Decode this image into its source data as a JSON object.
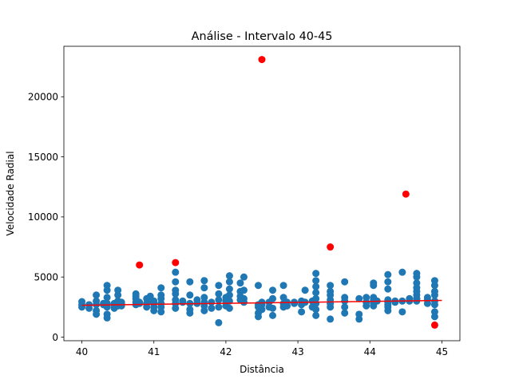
{
  "chart_data": {
    "type": "scatter",
    "title": "Análise - Intervalo 40-45",
    "xlabel": "Distância",
    "ylabel": "Velocidade Radial",
    "xlim": [
      39.75,
      45.25
    ],
    "ylim": [
      -300,
      24200
    ],
    "xticks": [
      40,
      41,
      42,
      43,
      44,
      45
    ],
    "yticks": [
      0,
      5000,
      10000,
      15000,
      20000
    ],
    "ytick_labels": [
      "0",
      "5000",
      "10000",
      "15000",
      "20000"
    ],
    "grid": false,
    "colors": {
      "points": "#1f77b4",
      "outliers": "#ff0000",
      "trend": "#ff0000"
    },
    "series": [
      {
        "role": "points",
        "x": [
          40.0,
          40.0,
          40.0,
          40.1,
          40.1,
          40.2,
          40.2,
          40.2,
          40.2,
          40.2,
          40.3,
          40.3,
          40.35,
          40.35,
          40.35,
          40.35,
          40.35,
          40.35,
          40.35,
          40.45,
          40.45,
          40.45,
          40.5,
          40.5,
          40.5,
          40.5,
          40.55,
          40.55,
          40.55,
          40.55,
          40.75,
          40.75,
          40.75,
          40.75,
          40.75,
          40.8,
          40.8,
          40.9,
          40.9,
          40.9,
          40.95,
          40.95,
          41.0,
          41.0,
          41.0,
          41.0,
          41.0,
          41.1,
          41.1,
          41.1,
          41.1,
          41.1,
          41.1,
          41.3,
          41.3,
          41.3,
          41.3,
          41.3,
          41.3,
          41.3,
          41.4,
          41.4,
          41.5,
          41.5,
          41.5,
          41.5,
          41.5,
          41.6,
          41.6,
          41.7,
          41.7,
          41.7,
          41.7,
          41.7,
          41.7,
          41.8,
          41.8,
          41.9,
          41.9,
          41.9,
          41.9,
          41.9,
          42.0,
          42.0,
          42.0,
          42.0,
          42.05,
          42.05,
          42.05,
          42.05,
          42.05,
          42.05,
          42.2,
          42.2,
          42.2,
          42.2,
          42.25,
          42.25,
          42.25,
          42.25,
          42.45,
          42.45,
          42.45,
          42.45,
          42.45,
          42.5,
          42.5,
          42.5,
          42.6,
          42.6,
          42.65,
          42.65,
          42.65,
          42.65,
          42.8,
          42.8,
          42.8,
          42.8,
          42.85,
          42.85,
          42.95,
          42.95,
          43.05,
          43.05,
          43.05,
          43.1,
          43.1,
          43.2,
          43.2,
          43.25,
          43.25,
          43.25,
          43.25,
          43.25,
          43.25,
          43.25,
          43.25,
          43.45,
          43.45,
          43.45,
          43.45,
          43.45,
          43.45,
          43.45,
          43.65,
          43.65,
          43.65,
          43.65,
          43.65,
          43.85,
          43.85,
          43.85,
          43.95,
          43.95,
          43.95,
          44.05,
          44.05,
          44.05,
          44.05,
          44.05,
          44.05,
          44.05,
          44.1,
          44.25,
          44.25,
          44.25,
          44.25,
          44.25,
          44.25,
          44.25,
          44.25,
          44.35,
          44.35,
          44.45,
          44.45,
          44.45,
          44.55,
          44.55,
          44.65,
          44.65,
          44.65,
          44.65,
          44.65,
          44.65,
          44.65,
          44.65,
          44.65,
          44.8,
          44.8,
          44.8,
          44.9,
          44.9,
          44.9,
          44.9,
          44.9,
          44.9,
          44.9,
          44.9
        ],
        "y": [
          2500,
          2700,
          2950,
          2400,
          2700,
          1900,
          2200,
          2700,
          3000,
          3500,
          2700,
          2800,
          1600,
          1900,
          2500,
          2800,
          3300,
          3900,
          4300,
          2400,
          2600,
          2800,
          2600,
          3000,
          3500,
          3900,
          2600,
          2800,
          2900,
          2700,
          2700,
          2900,
          3200,
          3400,
          3600,
          2800,
          2900,
          2500,
          2800,
          3200,
          3100,
          3400,
          2200,
          2500,
          2800,
          2900,
          3000,
          2100,
          2500,
          2800,
          3200,
          3500,
          4100,
          2400,
          2800,
          3100,
          3600,
          3900,
          4600,
          5400,
          3000,
          2900,
          2000,
          2300,
          2800,
          3500,
          4600,
          2800,
          3100,
          2200,
          2600,
          2900,
          3300,
          4100,
          4700,
          2400,
          2900,
          1200,
          2500,
          3100,
          3600,
          4300,
          2600,
          3000,
          3300,
          3000,
          2400,
          3000,
          3500,
          4000,
          4600,
          5100,
          3100,
          3400,
          3800,
          4500,
          2900,
          3200,
          3900,
          5000,
          1700,
          2000,
          2500,
          2700,
          4300,
          2300,
          2700,
          2900,
          2500,
          2900,
          1800,
          2400,
          3200,
          3900,
          2500,
          2800,
          3300,
          4300,
          2600,
          2900,
          2800,
          2900,
          2100,
          2700,
          3000,
          2900,
          3900,
          2500,
          3000,
          1800,
          2300,
          2800,
          3200,
          3700,
          4200,
          4700,
          5300,
          1500,
          2500,
          2800,
          3100,
          3500,
          3800,
          4300,
          2000,
          2500,
          3000,
          3300,
          4600,
          1500,
          1900,
          3200,
          2600,
          2900,
          3300,
          2600,
          2800,
          3000,
          3100,
          3300,
          4300,
          4500,
          3000,
          2200,
          2500,
          2700,
          2900,
          3100,
          4000,
          4600,
          5200,
          2900,
          3000,
          2100,
          3000,
          5400,
          3000,
          3200,
          3000,
          3200,
          3500,
          3800,
          4100,
          4500,
          5000,
          5300,
          3200,
          3100,
          3300,
          2800,
          1700,
          2100,
          2700,
          3000,
          3500,
          3800,
          4300,
          4700
        ]
      },
      {
        "role": "outliers",
        "x": [
          40.8,
          41.3,
          42.5,
          43.45,
          44.5,
          44.9
        ],
        "y": [
          6000,
          6200,
          23100,
          7500,
          11900,
          1000
        ]
      },
      {
        "role": "trend",
        "x": [
          40.0,
          45.0
        ],
        "y": [
          2650,
          3050
        ]
      }
    ]
  }
}
